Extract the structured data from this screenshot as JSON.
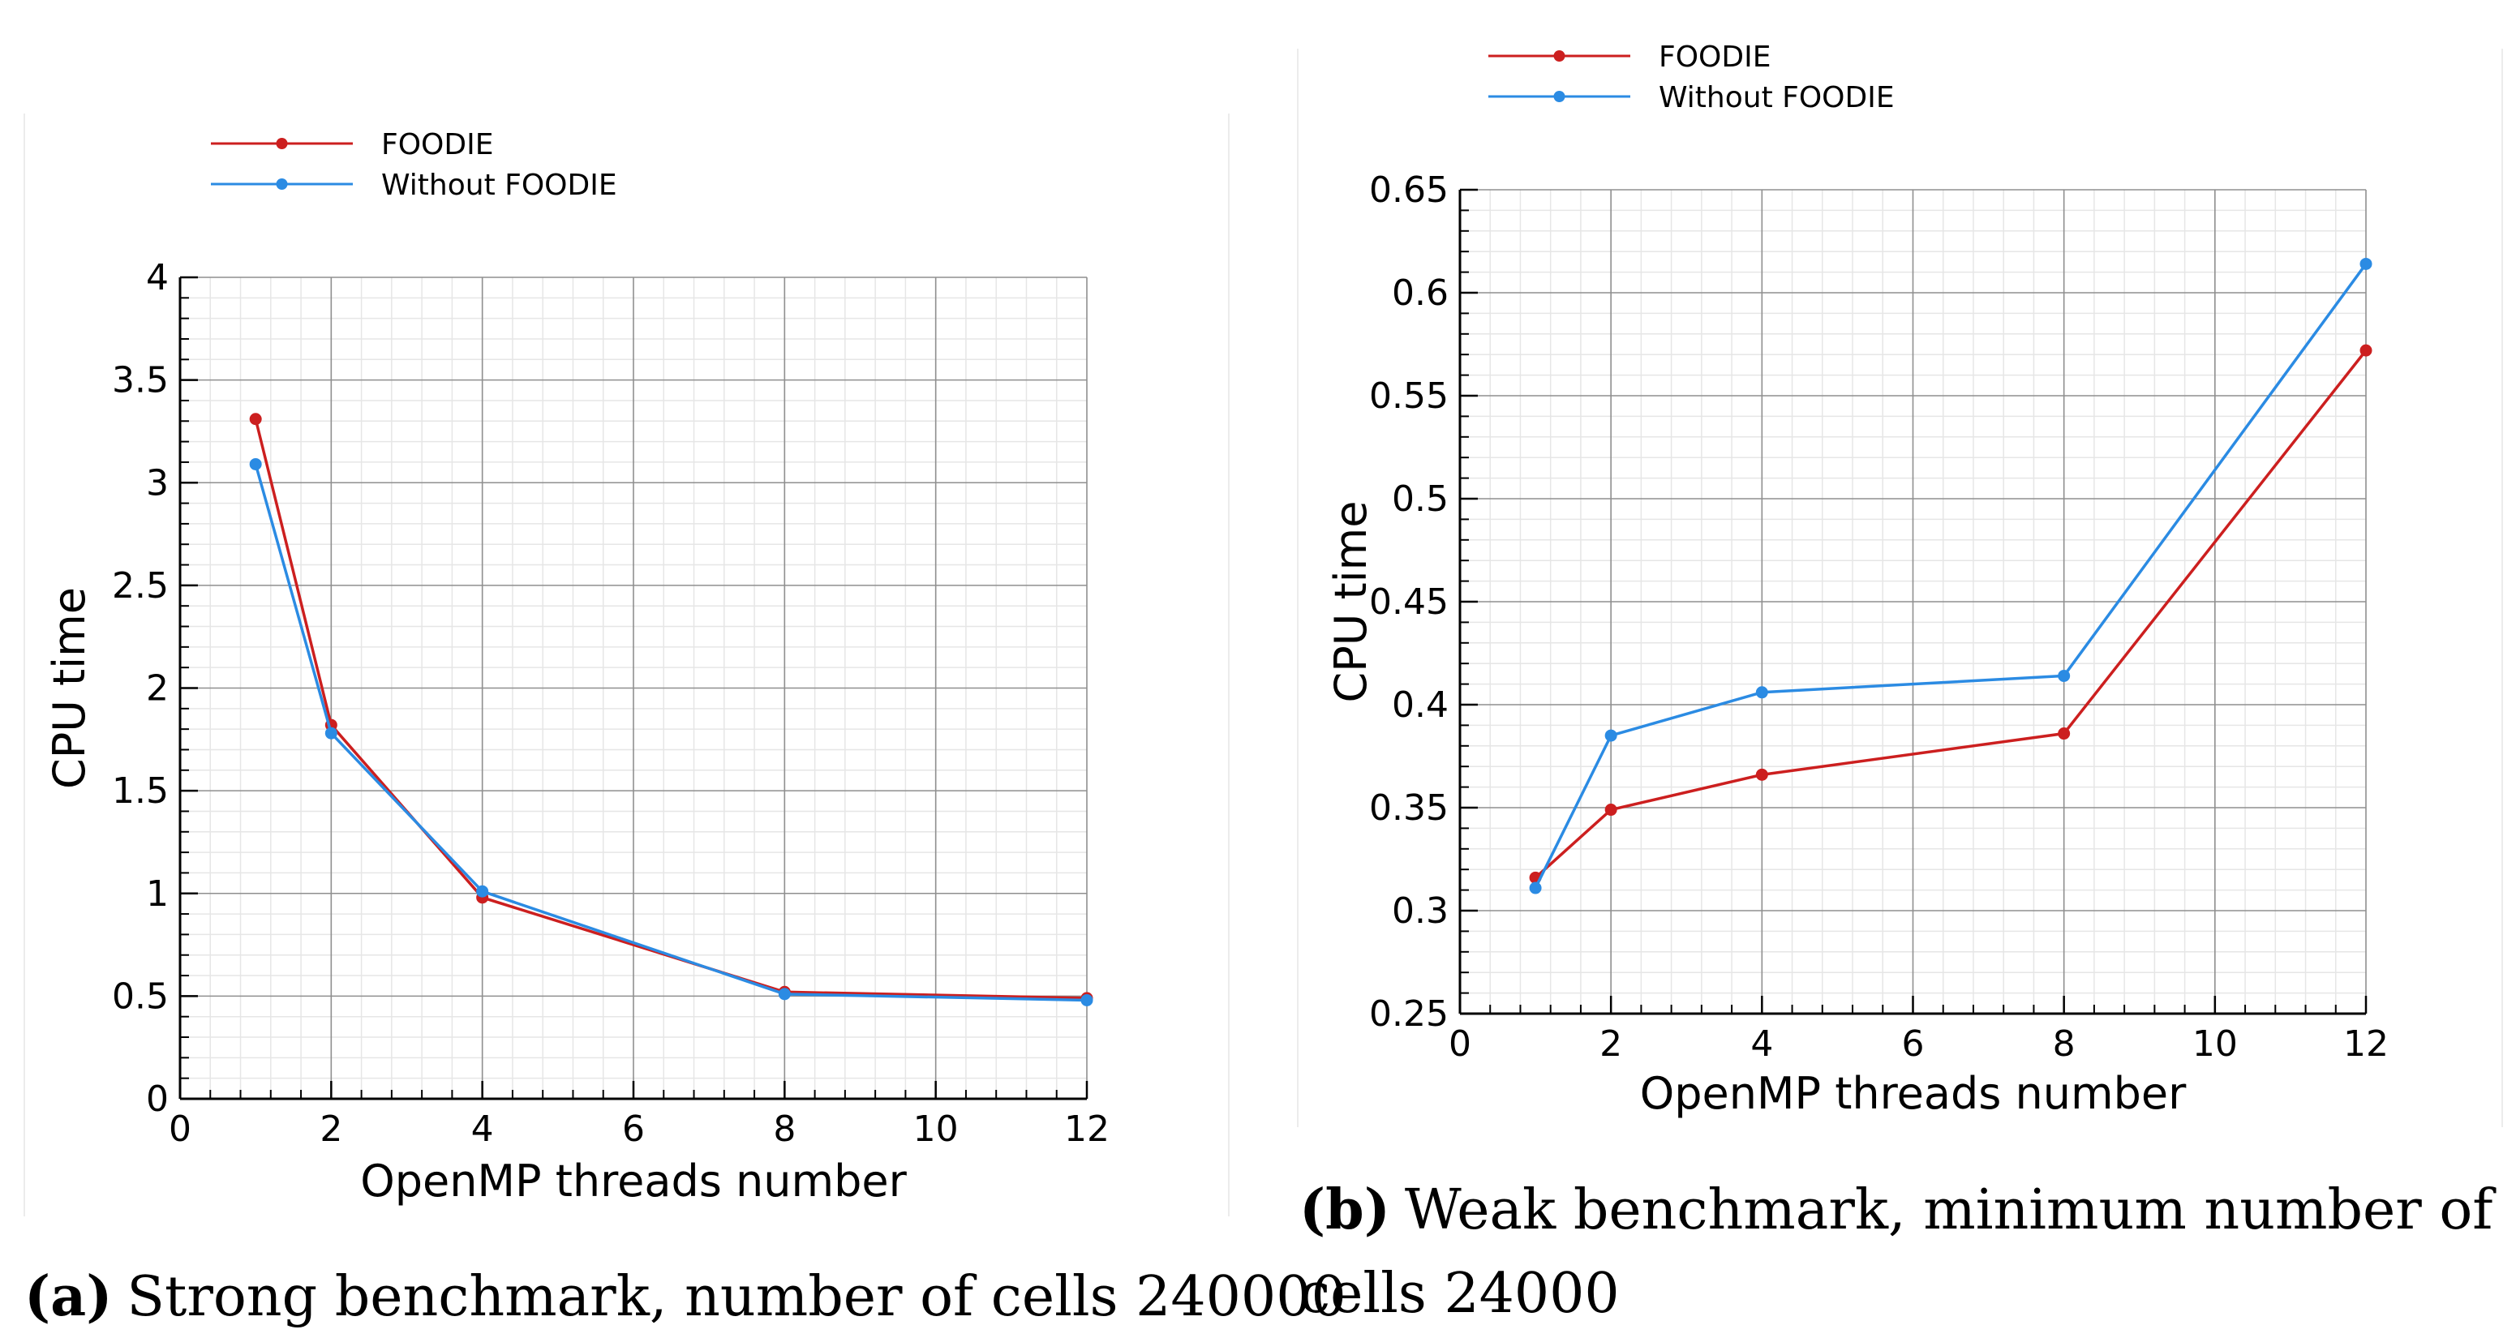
{
  "chart_data": [
    {
      "type": "line",
      "title": "",
      "xlabel": "OpenMP threads number",
      "ylabel": "CPU time",
      "xlim": [
        0,
        12
      ],
      "ylim": [
        0,
        4
      ],
      "xticks": [
        0,
        2,
        4,
        6,
        8,
        10,
        12
      ],
      "xtick_labels": [
        "0",
        "2",
        "4",
        "6",
        "8",
        "10",
        "12"
      ],
      "yticks": [
        0,
        0.5,
        1,
        1.5,
        2,
        2.5,
        3,
        3.5,
        4
      ],
      "ytick_labels": [
        "0",
        "0.5",
        "1",
        "1.5",
        "2",
        "2.5",
        "3",
        "3.5",
        "4"
      ],
      "grid": true,
      "legend_position": "top-left",
      "series": [
        {
          "name": "FOODIE",
          "color": "#cc1f1f",
          "x": [
            1,
            2,
            4,
            8,
            12
          ],
          "y": [
            3.31,
            1.82,
            0.98,
            0.52,
            0.49
          ]
        },
        {
          "name": "Without FOODIE",
          "color": "#2b8be3",
          "x": [
            1,
            2,
            4,
            8,
            12
          ],
          "y": [
            3.09,
            1.78,
            1.01,
            0.51,
            0.48
          ]
        }
      ],
      "caption_label": "(a)",
      "caption_text": "Strong benchmark, number of cells 240000"
    },
    {
      "type": "line",
      "title": "",
      "xlabel": "OpenMP threads number",
      "ylabel": "CPU time",
      "xlim": [
        0,
        12
      ],
      "ylim": [
        0.25,
        0.65
      ],
      "xticks": [
        0,
        2,
        4,
        6,
        8,
        10,
        12
      ],
      "xtick_labels": [
        "0",
        "2",
        "4",
        "6",
        "8",
        "10",
        "12"
      ],
      "yticks": [
        0.25,
        0.3,
        0.35,
        0.4,
        0.45,
        0.5,
        0.55,
        0.6,
        0.65
      ],
      "ytick_labels": [
        "0.25",
        "0.3",
        "0.35",
        "0.4",
        "0.45",
        "0.5",
        "0.55",
        "0.6",
        "0.65"
      ],
      "grid": true,
      "legend_position": "top-left",
      "series": [
        {
          "name": "FOODIE",
          "color": "#cc1f1f",
          "x": [
            1,
            2,
            4,
            8,
            12
          ],
          "y": [
            0.316,
            0.349,
            0.366,
            0.386,
            0.572
          ]
        },
        {
          "name": "Without FOODIE",
          "color": "#2b8be3",
          "x": [
            1,
            2,
            4,
            8,
            12
          ],
          "y": [
            0.311,
            0.385,
            0.406,
            0.414,
            0.614
          ]
        }
      ],
      "caption_label": "(b)",
      "caption_text": "Weak benchmark, minimum number of",
      "caption_text_2": "cells 24000"
    }
  ]
}
